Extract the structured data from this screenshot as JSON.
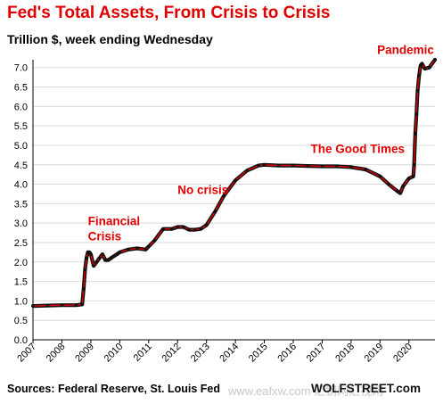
{
  "chart_data": {
    "type": "line",
    "title": "Fed's Total Assets, From Crisis to Crisis",
    "subtitle": "Trillion $, week ending Wednesday",
    "xlabel": "",
    "ylabel": "",
    "xlim": [
      2007.0,
      2020.9
    ],
    "ylim": [
      0,
      7.2
    ],
    "yticks": [
      "0.0",
      "0.5",
      "1.0",
      "1.5",
      "2.0",
      "2.5",
      "3.0",
      "3.5",
      "4.0",
      "4.5",
      "5.0",
      "5.5",
      "6.0",
      "6.5",
      "7.0"
    ],
    "xticks": [
      "2007",
      "2008",
      "2009",
      "2010",
      "2011",
      "2012",
      "2013",
      "2014",
      "2015",
      "2016",
      "2017",
      "2018",
      "2019",
      "2020"
    ],
    "grid": "horizontal",
    "legend": "none",
    "colors": {
      "line": "#e00000",
      "markers": "#111111",
      "annotation": "#e00000",
      "grid": "#d9d9d9"
    },
    "series": [
      {
        "x": [
          2007.0,
          2007.5,
          2008.0,
          2008.5,
          2008.7,
          2008.75,
          2008.8,
          2008.85,
          2008.9,
          2008.95,
          2009.0,
          2009.1,
          2009.2,
          2009.3,
          2009.4,
          2009.5,
          2009.6,
          2009.7,
          2009.8,
          2009.9,
          2010.0,
          2010.3,
          2010.6,
          2010.9,
          2011.0,
          2011.2,
          2011.5,
          2011.8,
          2012.0,
          2012.2,
          2012.4,
          2012.6,
          2012.8,
          2013.0,
          2013.3,
          2013.6,
          2014.0,
          2014.4,
          2014.8,
          2015.0,
          2015.5,
          2016.0,
          2016.5,
          2017.0,
          2017.5,
          2018.0,
          2018.5,
          2019.0,
          2019.3,
          2019.6,
          2019.7,
          2019.8,
          2020.0,
          2020.15,
          2020.18,
          2020.22,
          2020.26,
          2020.3,
          2020.35,
          2020.4,
          2020.45,
          2020.55,
          2020.7,
          2020.9
        ],
        "y": [
          0.87,
          0.88,
          0.89,
          0.89,
          0.91,
          1.3,
          1.8,
          2.1,
          2.25,
          2.25,
          2.2,
          1.9,
          2.0,
          2.1,
          2.2,
          2.05,
          2.05,
          2.1,
          2.15,
          2.2,
          2.25,
          2.32,
          2.35,
          2.32,
          2.4,
          2.55,
          2.85,
          2.85,
          2.9,
          2.9,
          2.83,
          2.83,
          2.85,
          2.95,
          3.3,
          3.7,
          4.1,
          4.35,
          4.48,
          4.5,
          4.48,
          4.48,
          4.47,
          4.46,
          4.46,
          4.44,
          4.38,
          4.2,
          4.0,
          3.82,
          3.77,
          3.95,
          4.15,
          4.2,
          4.5,
          5.3,
          5.8,
          6.4,
          6.8,
          7.05,
          7.1,
          6.97,
          7.0,
          7.2
        ]
      }
    ],
    "annotations": [
      {
        "lines": [
          "Financial",
          "Crisis"
        ],
        "x": 2008.9,
        "y": 2.95
      },
      {
        "lines": [
          "No crisis"
        ],
        "x": 2012.0,
        "y": 3.75
      },
      {
        "lines": [
          "The Good Times"
        ],
        "x": 2016.6,
        "y": 4.8
      },
      {
        "lines": [
          "Pandemic"
        ],
        "x": 2018.9,
        "y": 7.35
      }
    ]
  },
  "footer": {
    "sources": "Sources: Federal Reserve, St. Louis Fed",
    "brand": "WOLFSTREET.com",
    "watermark": "www.eafxw.com 汇钢网汇视网"
  }
}
